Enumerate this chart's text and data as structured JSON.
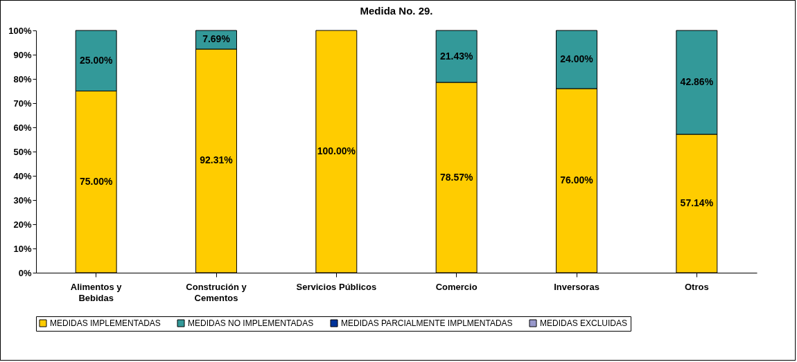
{
  "chart_data": {
    "type": "bar",
    "title": "Medida No. 29.",
    "stacked": true,
    "categories": [
      "Alimentos y Bebidas",
      "Construción y Cementos",
      "Servicios Públicos",
      "Comercio",
      "Inversoras",
      "Otros"
    ],
    "series": [
      {
        "name": "MEDIDAS IMPLEMENTADAS",
        "color": "#ffcc00",
        "values": [
          75,
          92.31,
          100,
          78.57,
          76,
          57.14
        ],
        "value_labels": [
          "75.00%",
          "92.31%",
          "100.00%",
          "78.57%",
          "76.00%",
          "57.14%"
        ]
      },
      {
        "name": "MEDIDAS NO IMPLEMENTADAS",
        "color": "#339999",
        "values": [
          25,
          7.69,
          0,
          21.43,
          24,
          42.86
        ],
        "value_labels": [
          "25.00%",
          "7.69%",
          null,
          "21.43%",
          "24.00%",
          "42.86%"
        ]
      },
      {
        "name": "MEDIDAS PARCIALMENTE IMPLMENTADAS",
        "color": "#003399",
        "values": [
          0,
          0,
          0,
          0,
          0,
          0
        ]
      },
      {
        "name": "MEDIDAS EXCLUIDAS",
        "color": "#9999cc",
        "values": [
          0,
          0,
          0,
          0,
          0,
          0
        ]
      }
    ],
    "ylim": [
      0,
      100
    ],
    "yticks": [
      {
        "value": 0,
        "label": "0%"
      },
      {
        "value": 10,
        "label": "10%"
      },
      {
        "value": 20,
        "label": "20%"
      },
      {
        "value": 30,
        "label": "30%"
      },
      {
        "value": 40,
        "label": "40%"
      },
      {
        "value": 50,
        "label": "50%"
      },
      {
        "value": 60,
        "label": "60%"
      },
      {
        "value": 70,
        "label": "70%"
      },
      {
        "value": 80,
        "label": "80%"
      },
      {
        "value": 90,
        "label": "90%"
      },
      {
        "value": 100,
        "label": "100%"
      }
    ],
    "grid": false,
    "legend": "bottom"
  }
}
